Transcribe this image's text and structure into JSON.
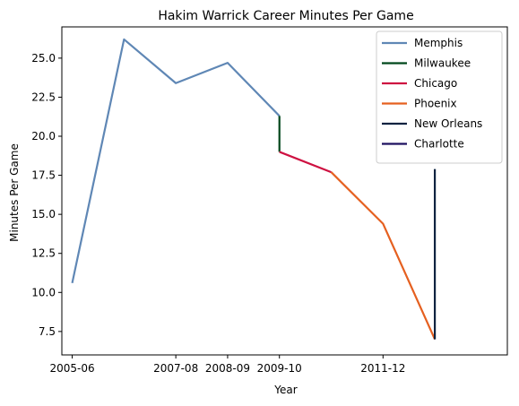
{
  "chart_data": {
    "type": "line",
    "title": "Hakim Warrick Career Minutes Per Game",
    "xlabel": "Year",
    "ylabel": "Minutes Per Game",
    "x_ticks": [
      "2005-06",
      "2007-08",
      "2008-09",
      "2009-10",
      "2011-12"
    ],
    "y_ticks": [
      "7.5",
      "10.0",
      "12.5",
      "15.0",
      "17.5",
      "20.0",
      "22.5",
      "25.0"
    ],
    "ylim": [
      6.0,
      27.0
    ],
    "grid": false,
    "legend_position": "top-right",
    "series": [
      {
        "name": "Memphis",
        "color": "#5f87b5",
        "points": [
          {
            "x": "2005-06",
            "y": 10.6
          },
          {
            "x": "2006-07",
            "y": 26.2
          },
          {
            "x": "2007-08",
            "y": 23.4
          },
          {
            "x": "2008-09",
            "y": 24.7
          },
          {
            "x": "2009-10",
            "y": 21.3
          }
        ]
      },
      {
        "name": "Milwaukee",
        "color": "#00471b",
        "points": [
          {
            "x": "2009-10",
            "y": 21.3
          },
          {
            "x": "2009-10",
            "y": 19.0
          }
        ]
      },
      {
        "name": "Chicago",
        "color": "#ce1141",
        "points": [
          {
            "x": "2009-10",
            "y": 19.0
          },
          {
            "x": "2010-11",
            "y": 17.7
          }
        ]
      },
      {
        "name": "Phoenix",
        "color": "#e56020",
        "points": [
          {
            "x": "2010-11",
            "y": 17.7
          },
          {
            "x": "2011-12",
            "y": 14.4
          },
          {
            "x": "2012-13",
            "y": 7.0
          }
        ]
      },
      {
        "name": "New Orleans",
        "color": "#0c2340",
        "points": [
          {
            "x": "2012-13",
            "y": 7.0
          },
          {
            "x": "2012-13",
            "y": 17.9
          }
        ]
      },
      {
        "name": "Charlotte",
        "color": "#1d1160",
        "points": [
          {
            "x": "2012-13",
            "y": 17.9
          },
          {
            "x": "2012-13",
            "y": 17.9
          }
        ]
      }
    ]
  }
}
